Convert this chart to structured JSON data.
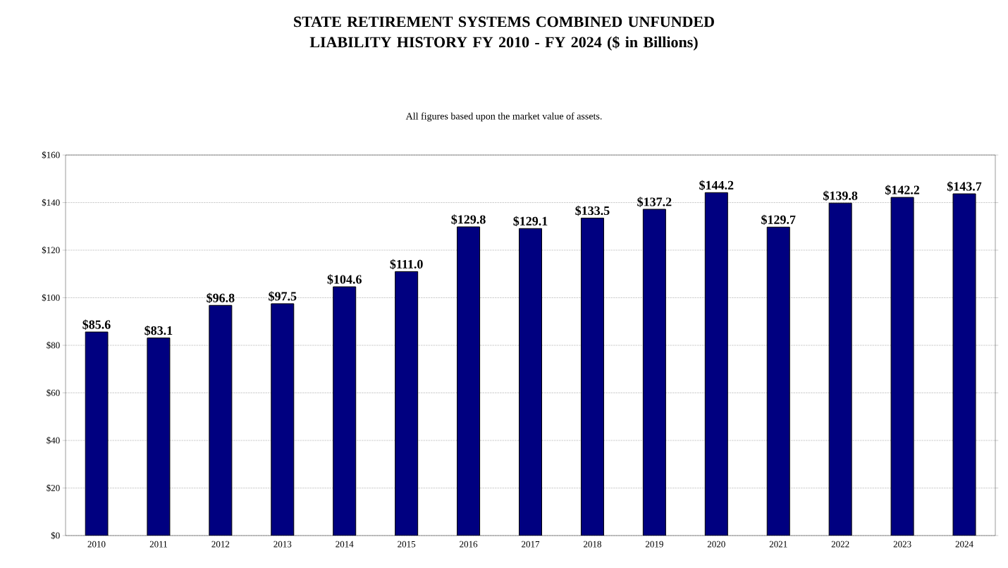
{
  "chart_data": {
    "type": "bar",
    "title": "STATE RETIREMENT SYSTEMS COMBINED UNFUNDED LIABILITY HISTORY FY 2010 - FY 2024 ($ in Billions)",
    "subtitle": "All figures based upon the market value of assets.",
    "categories": [
      "2010",
      "2011",
      "2012",
      "2013",
      "2014",
      "2015",
      "2016",
      "2017",
      "2018",
      "2019",
      "2020",
      "2021",
      "2022",
      "2023",
      "2024"
    ],
    "values": [
      85.6,
      83.1,
      96.8,
      97.5,
      104.6,
      111.0,
      129.8,
      129.1,
      133.5,
      137.2,
      144.2,
      129.7,
      139.8,
      142.2,
      143.7
    ],
    "value_labels": [
      "$85.6",
      "$83.1",
      "$96.8",
      "$97.5",
      "$104.6",
      "$111.0",
      "$129.8",
      "$129.1",
      "$133.5",
      "$137.2",
      "$144.2",
      "$129.7",
      "$139.8",
      "$142.2",
      "$143.7"
    ],
    "color": "#000080",
    "ylim": [
      0,
      160
    ],
    "yticks": [
      {
        "value": 0,
        "label": "$0"
      },
      {
        "value": 20,
        "label": "$20"
      },
      {
        "value": 40,
        "label": "$40"
      },
      {
        "value": 60,
        "label": "$60"
      },
      {
        "value": 80,
        "label": "$80"
      },
      {
        "value": 100,
        "label": "$100"
      },
      {
        "value": 120,
        "label": "$120"
      },
      {
        "value": 140,
        "label": "$140"
      },
      {
        "value": 160,
        "label": "$160"
      }
    ],
    "grid": "y"
  }
}
